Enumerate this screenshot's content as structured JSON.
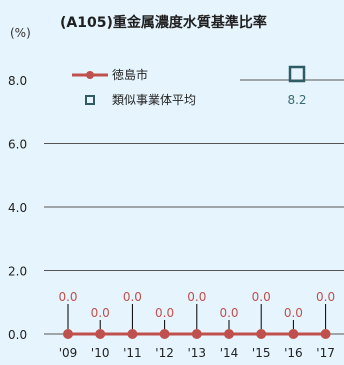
{
  "chart_data": {
    "type": "line",
    "title": "(A105)重金属濃度水質基準比率",
    "unit_label": "(%)",
    "categories": [
      "'09",
      "'10",
      "'11",
      "'12",
      "'13",
      "'14",
      "'15",
      "'16",
      "'17"
    ],
    "ylim": [
      0,
      8.0
    ],
    "yticks": [
      "0.0",
      "2.0",
      "4.0",
      "6.0",
      "8.0"
    ],
    "grid": true,
    "legend_position": "top",
    "series": [
      {
        "name": "徳島市",
        "color": "#c0504d",
        "values": [
          0.0,
          0.0,
          0.0,
          0.0,
          0.0,
          0.0,
          0.0,
          0.0,
          0.0
        ],
        "labels": [
          "0.0",
          "0.0",
          "0.0",
          "0.0",
          "0.0",
          "0.0",
          "0.0",
          "0.0",
          "0.0"
        ]
      },
      {
        "name": "類似事業体平均",
        "color": "#2f5b63",
        "marker": "square-outline",
        "value": 8.2,
        "label": "8.2"
      }
    ]
  }
}
